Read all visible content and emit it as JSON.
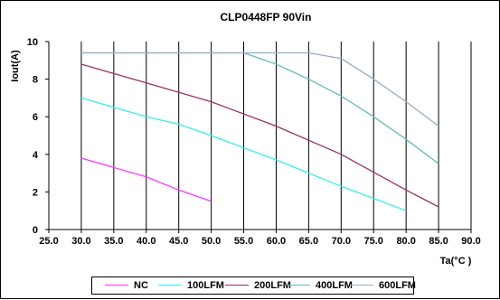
{
  "chart_data": {
    "type": "line",
    "title": "CLP0448FP 90Vin",
    "xlabel": "Ta(°C )",
    "ylabel": "Iout(A)",
    "xlim": [
      25,
      90
    ],
    "ylim": [
      0,
      10
    ],
    "x_ticks": [
      "25.0",
      "30.0",
      "35.0",
      "40.0",
      "45.0",
      "50.0",
      "55.0",
      "60.0",
      "65.0",
      "70.0",
      "75.0",
      "80.0",
      "85.0",
      "90.0"
    ],
    "y_ticks": [
      "0",
      "2",
      "4",
      "6",
      "8",
      "10"
    ],
    "grid": "vertical",
    "legend_position": "bottom",
    "series": [
      {
        "name": "NC",
        "color": "#ff33ff",
        "x": [
          30,
          35,
          40,
          45,
          50
        ],
        "y": [
          3.8,
          3.3,
          2.8,
          2.1,
          1.5
        ]
      },
      {
        "name": "100LFM",
        "color": "#33eeee",
        "x": [
          30,
          40,
          45,
          50,
          60,
          70,
          80
        ],
        "y": [
          7.0,
          6.0,
          5.6,
          5.0,
          3.7,
          2.3,
          1.0
        ]
      },
      {
        "name": "200LFM",
        "color": "#993366",
        "x": [
          30,
          40,
          50,
          60,
          70,
          80,
          85
        ],
        "y": [
          8.8,
          7.8,
          6.8,
          5.5,
          4.0,
          2.1,
          1.2
        ]
      },
      {
        "name": "400LFM",
        "color": "#66bbbb",
        "x": [
          30,
          55,
          60,
          65,
          70,
          75,
          80,
          85
        ],
        "y": [
          9.4,
          9.4,
          8.8,
          8.0,
          7.1,
          6.0,
          4.8,
          3.5
        ]
      },
      {
        "name": "600LFM",
        "color": "#99aacc",
        "x": [
          30,
          65,
          70,
          75,
          80,
          85
        ],
        "y": [
          9.4,
          9.4,
          9.1,
          8.0,
          6.8,
          5.5
        ]
      }
    ]
  }
}
